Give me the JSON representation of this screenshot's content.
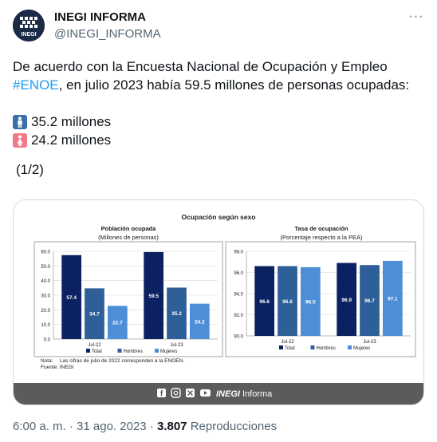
{
  "account": {
    "name": "INEGI INFORMA",
    "handle": "@INEGI_INFORMA",
    "avatar_text": "INEGI",
    "more_icon": "ellipsis-icon"
  },
  "tweet": {
    "line1": "De acuerdo con la Encuesta Nacional de Ocupación y Empleo",
    "hashtag": "#ENOE",
    "line2_rest": ", en julio 2023 había 59.5 millones de personas ocupadas:",
    "men_value": "35.2 millones",
    "women_value": "24.2 millones",
    "pagination": "(1/2)"
  },
  "colors": {
    "total": "#0b2161",
    "hombres": "#2f5f98",
    "mujeres": "#4d8fd6",
    "emoji_blue": "#3a6fa8",
    "emoji_pink": "#f07a8a",
    "footer_bar": "#5b5b5b"
  },
  "infographic": {
    "main_title": "Ocupación según sexo",
    "note_label": "Nota:",
    "note_text": "Las cifras de julio de 2022 corresponden a la ENOEN.",
    "source": "Fuente: INEGI",
    "footer_brand_bold": "INEGI",
    "footer_brand_light": "Informa",
    "footer_icons": [
      "facebook-icon",
      "instagram-icon",
      "x-icon",
      "youtube-icon"
    ]
  },
  "chart_data": [
    {
      "type": "bar",
      "title": "Población ocupada",
      "subtitle": "(Millones de personas)",
      "categories": [
        "Jul-22",
        "Jul-23"
      ],
      "series": [
        {
          "name": "Total",
          "values": [
            57.4,
            59.5
          ]
        },
        {
          "name": "Hombres",
          "values": [
            34.7,
            35.2
          ]
        },
        {
          "name": "Mujeres",
          "values": [
            22.7,
            24.2
          ]
        }
      ],
      "ylim": [
        0,
        60
      ],
      "yticks": [
        "0.0",
        "10.0",
        "20.0",
        "30.0",
        "40.0",
        "50.0",
        "60.0"
      ],
      "grid": true,
      "legend": "bottom"
    },
    {
      "type": "bar",
      "title": "Tasa de ocupación",
      "subtitle": "(Porcentaje respecto a la PEA)",
      "categories": [
        "Jul-22",
        "Jul-23"
      ],
      "series": [
        {
          "name": "Total",
          "values": [
            96.6,
            96.9
          ]
        },
        {
          "name": "Hombres",
          "values": [
            96.6,
            96.7
          ]
        },
        {
          "name": "Mujeres",
          "values": [
            96.5,
            97.1
          ]
        }
      ],
      "ylim": [
        90,
        98
      ],
      "yticks": [
        "90.0",
        "92.0",
        "94.0",
        "96.0",
        "98.0"
      ],
      "grid": true,
      "legend": "bottom"
    }
  ],
  "meta": {
    "time": "6:00 a. m.",
    "separator": "·",
    "date": "31 ago. 2023",
    "views": "3.807",
    "views_label": "Reproducciones"
  }
}
